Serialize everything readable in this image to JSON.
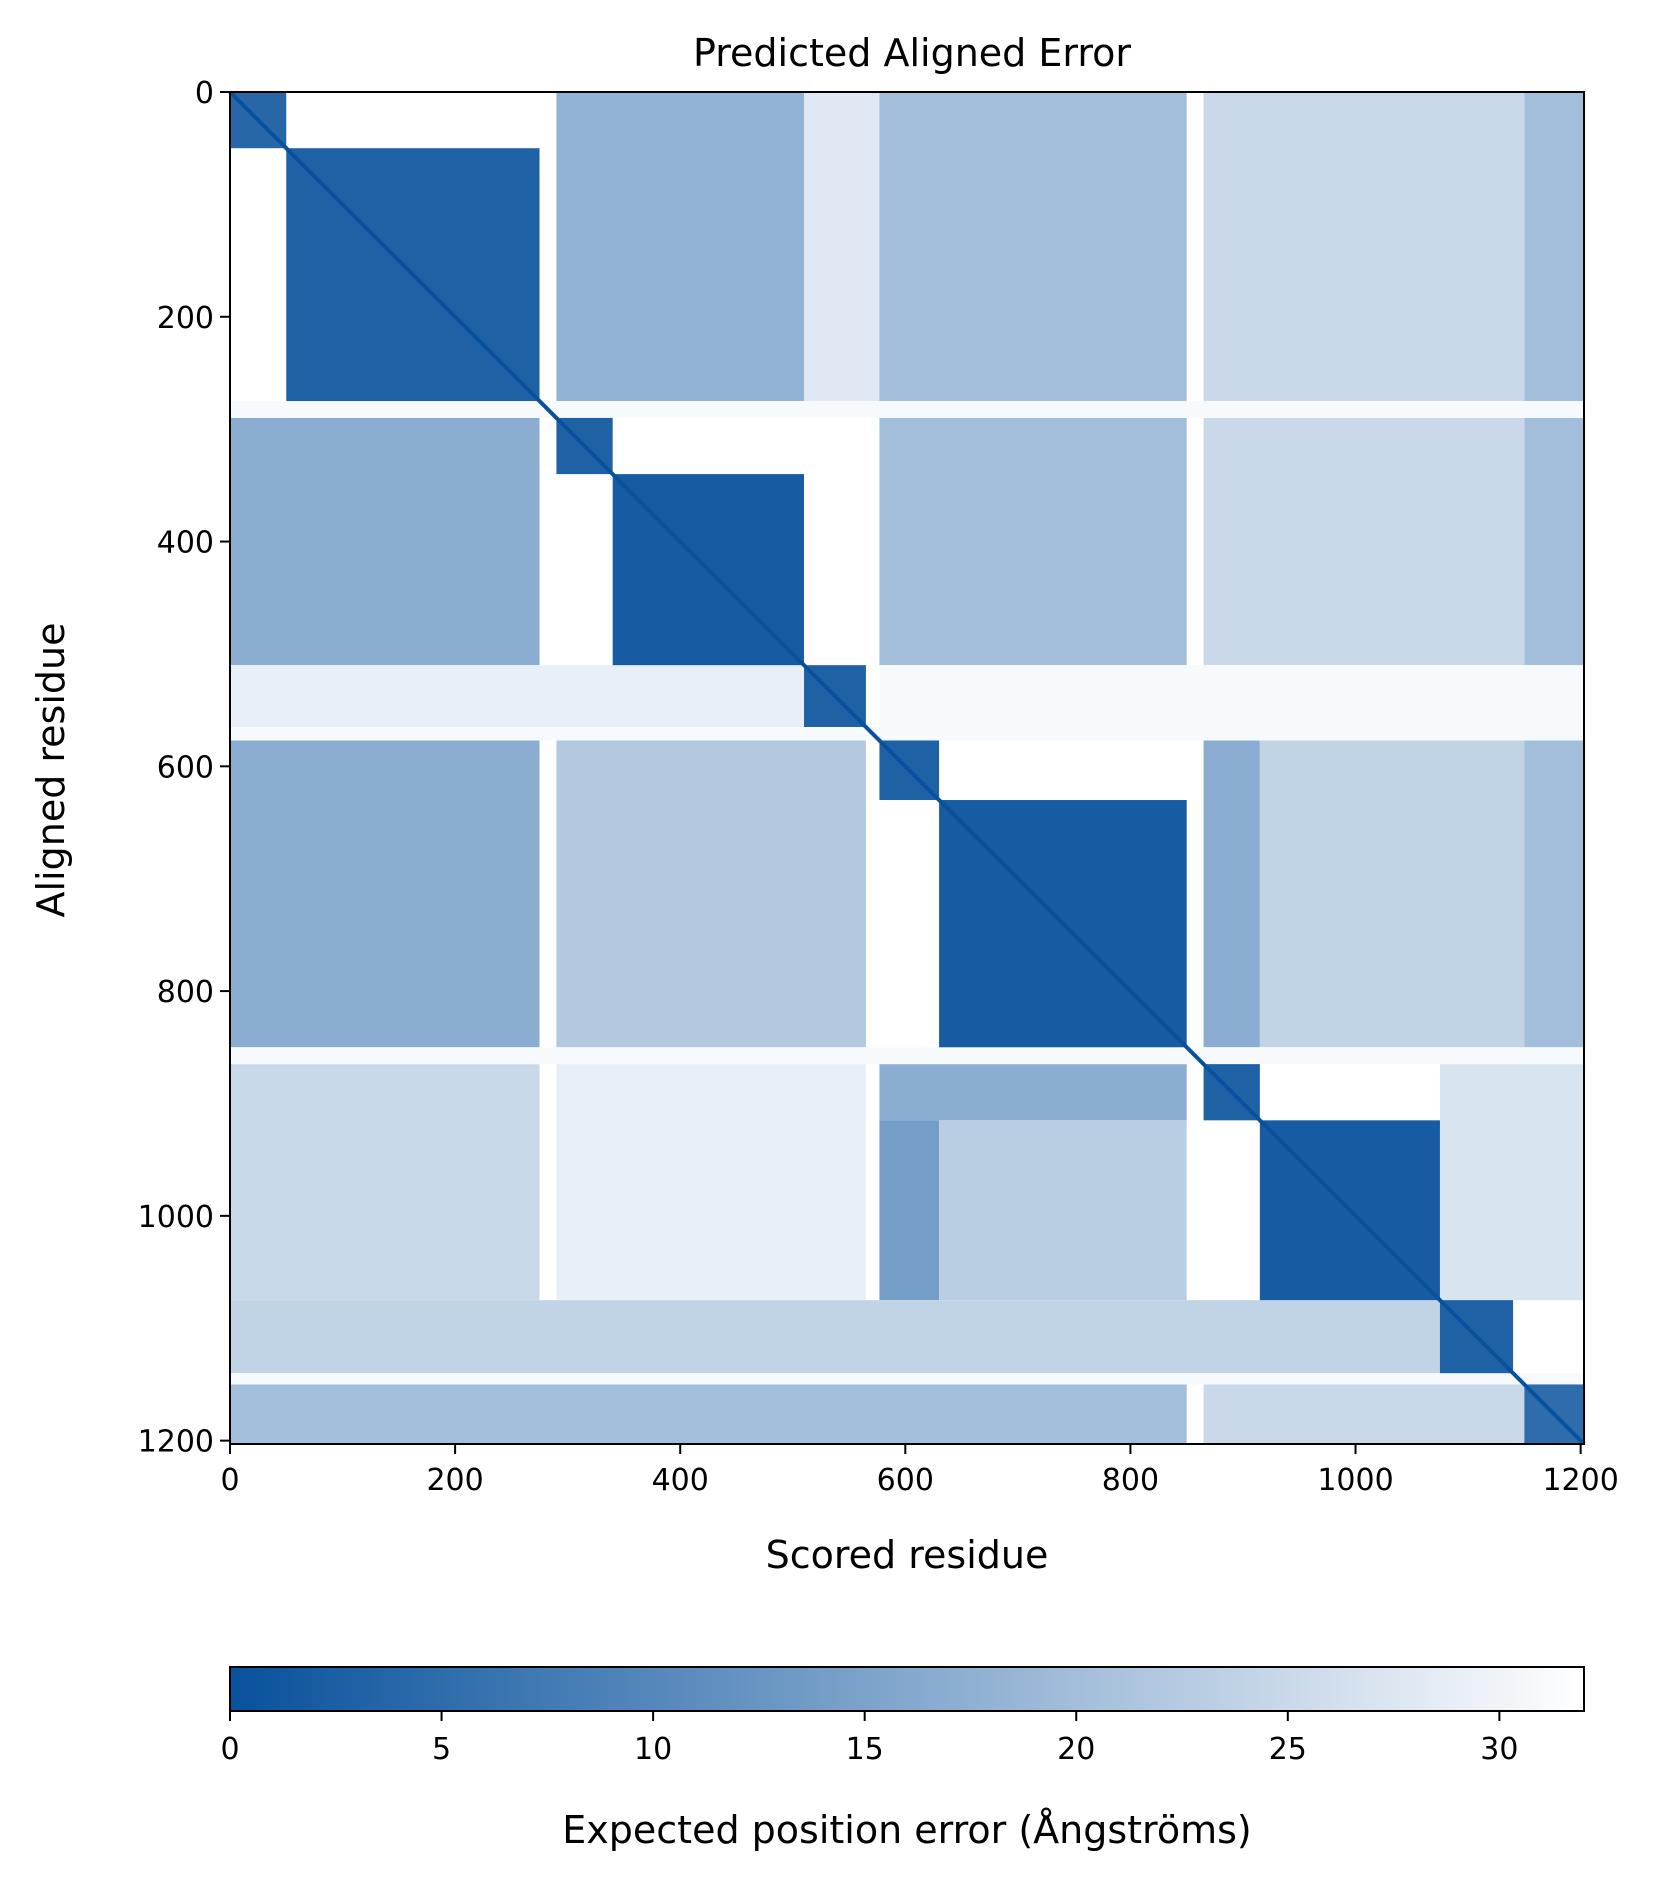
{
  "chart_data": {
    "type": "heatmap",
    "title": "Predicted Aligned Error",
    "xlabel": "Scored residue",
    "ylabel": "Aligned residue",
    "n_residues": 1203,
    "xlim": [
      0,
      1203
    ],
    "ylim": [
      1203,
      0
    ],
    "xticks": [
      0,
      200,
      400,
      600,
      800,
      1000,
      1200
    ],
    "yticks": [
      0,
      200,
      400,
      600,
      800,
      1000,
      1200
    ],
    "xtick_labels": [
      "0",
      "200",
      "400",
      "600",
      "800",
      "1000",
      "1200"
    ],
    "ytick_labels": [
      "0",
      "200",
      "400",
      "600",
      "800",
      "1000",
      "1200"
    ],
    "colormap": "Blues_r",
    "color_low": "#08519c",
    "color_high": "#ffffff",
    "colorbar": {
      "label": "Expected position error (Ångströms)",
      "min": 0,
      "max": 32,
      "ticks": [
        0,
        5,
        10,
        15,
        20,
        25,
        30
      ],
      "tick_labels": [
        "0",
        "5",
        "10",
        "15",
        "20",
        "25",
        "30"
      ],
      "orientation": "horizontal",
      "placement": "bottom"
    },
    "domains": [
      {
        "start": 0,
        "end": 50,
        "error": 4
      },
      {
        "start": 50,
        "end": 275,
        "error": 3
      },
      {
        "start": 290,
        "end": 340,
        "error": 3
      },
      {
        "start": 340,
        "end": 510,
        "error": 2
      },
      {
        "start": 510,
        "end": 565,
        "error": 3
      },
      {
        "start": 577,
        "end": 630,
        "error": 3
      },
      {
        "start": 630,
        "end": 850,
        "error": 2
      },
      {
        "start": 865,
        "end": 915,
        "error": 3
      },
      {
        "start": 915,
        "end": 1075,
        "error": 2
      },
      {
        "start": 1075,
        "end": 1140,
        "error": 3
      },
      {
        "start": 1150,
        "end": 1203,
        "error": 5
      }
    ],
    "gaps": [
      {
        "start": 275,
        "end": 290
      },
      {
        "start": 565,
        "end": 577
      },
      {
        "start": 850,
        "end": 865
      },
      {
        "start": 1140,
        "end": 1150
      }
    ],
    "inter_domain_blocks": [
      {
        "rows": [
          0,
          275
        ],
        "cols": [
          290,
          510
        ],
        "error": 18
      },
      {
        "rows": [
          0,
          275
        ],
        "cols": [
          510,
          577
        ],
        "error": 28
      },
      {
        "rows": [
          0,
          275
        ],
        "cols": [
          577,
          850
        ],
        "error": 20
      },
      {
        "rows": [
          0,
          275
        ],
        "cols": [
          865,
          1150
        ],
        "error": 25
      },
      {
        "rows": [
          0,
          275
        ],
        "cols": [
          1150,
          1203
        ],
        "error": 20
      },
      {
        "rows": [
          290,
          510
        ],
        "cols": [
          0,
          275
        ],
        "error": 17
      },
      {
        "rows": [
          290,
          510
        ],
        "cols": [
          577,
          850
        ],
        "error": 20
      },
      {
        "rows": [
          290,
          510
        ],
        "cols": [
          865,
          1150
        ],
        "error": 25
      },
      {
        "rows": [
          290,
          510
        ],
        "cols": [
          1150,
          1203
        ],
        "error": 20
      },
      {
        "rows": [
          510,
          565
        ],
        "cols": [
          0,
          510
        ],
        "error": 29
      },
      {
        "rows": [
          510,
          565
        ],
        "cols": [
          577,
          1203
        ],
        "error": 31
      },
      {
        "rows": [
          577,
          850
        ],
        "cols": [
          0,
          275
        ],
        "error": 17
      },
      {
        "rows": [
          577,
          850
        ],
        "cols": [
          290,
          565
        ],
        "error": 22
      },
      {
        "rows": [
          577,
          850
        ],
        "cols": [
          865,
          915
        ],
        "error": 17
      },
      {
        "rows": [
          577,
          850
        ],
        "cols": [
          915,
          1150
        ],
        "error": 24
      },
      {
        "rows": [
          577,
          850
        ],
        "cols": [
          1150,
          1203
        ],
        "error": 20
      },
      {
        "rows": [
          865,
          1075
        ],
        "cols": [
          0,
          275
        ],
        "error": 25
      },
      {
        "rows": [
          865,
          1075
        ],
        "cols": [
          290,
          565
        ],
        "error": 29
      },
      {
        "rows": [
          865,
          915
        ],
        "cols": [
          577,
          850
        ],
        "error": 17
      },
      {
        "rows": [
          915,
          1075
        ],
        "cols": [
          577,
          630
        ],
        "error": 14
      },
      {
        "rows": [
          915,
          1075
        ],
        "cols": [
          630,
          850
        ],
        "error": 23
      },
      {
        "rows": [
          865,
          1075
        ],
        "cols": [
          1075,
          1203
        ],
        "error": 27
      },
      {
        "rows": [
          1075,
          1140
        ],
        "cols": [
          0,
          1075
        ],
        "error": 24
      },
      {
        "rows": [
          1150,
          1203
        ],
        "cols": [
          0,
          850
        ],
        "error": 20
      },
      {
        "rows": [
          1150,
          1203
        ],
        "cols": [
          865,
          1150
        ],
        "error": 25
      }
    ]
  }
}
